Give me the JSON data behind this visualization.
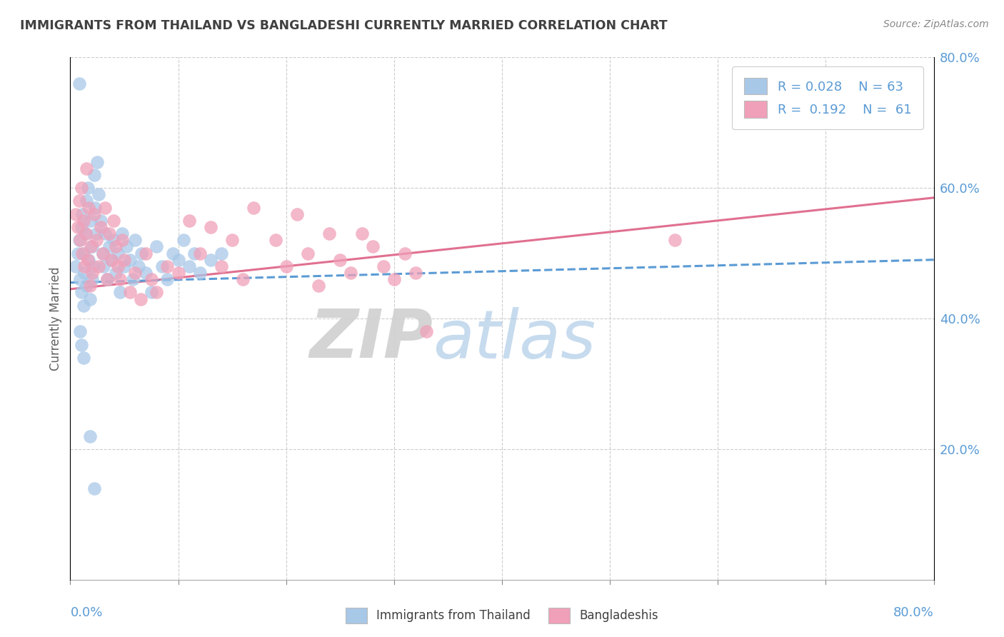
{
  "title": "IMMIGRANTS FROM THAILAND VS BANGLADESHI CURRENTLY MARRIED CORRELATION CHART",
  "source_text": "Source: ZipAtlas.com",
  "ylabel": "Currently Married",
  "watermark_zip": "ZIP",
  "watermark_atlas": "atlas",
  "blue_R": "0.028",
  "blue_N": "63",
  "pink_R": "0.192",
  "pink_N": "61",
  "blue_color": "#a8c8e8",
  "pink_color": "#f0a0b8",
  "blue_line_color": "#5b9bd5",
  "pink_line_color": "#e07090",
  "title_color": "#404040",
  "axis_label_color": "#5b9bd5",
  "xlim": [
    0.0,
    0.8
  ],
  "ylim": [
    0.0,
    0.8
  ],
  "blue_trend_start": 0.455,
  "blue_trend_end": 0.49,
  "pink_trend_start": 0.445,
  "pink_trend_end": 0.585,
  "blue_x": [
    0.005,
    0.007,
    0.008,
    0.009,
    0.01,
    0.01,
    0.011,
    0.012,
    0.012,
    0.013,
    0.014,
    0.015,
    0.015,
    0.016,
    0.017,
    0.018,
    0.019,
    0.02,
    0.02,
    0.021,
    0.022,
    0.023,
    0.024,
    0.025,
    0.026,
    0.028,
    0.03,
    0.031,
    0.032,
    0.034,
    0.036,
    0.038,
    0.04,
    0.042,
    0.044,
    0.046,
    0.048,
    0.05,
    0.052,
    0.055,
    0.058,
    0.06,
    0.063,
    0.066,
    0.07,
    0.075,
    0.08,
    0.085,
    0.09,
    0.095,
    0.1,
    0.105,
    0.11,
    0.115,
    0.12,
    0.13,
    0.14,
    0.008,
    0.009,
    0.01,
    0.012,
    0.018,
    0.022
  ],
  "blue_y": [
    0.48,
    0.5,
    0.52,
    0.46,
    0.54,
    0.44,
    0.56,
    0.42,
    0.5,
    0.47,
    0.53,
    0.58,
    0.45,
    0.6,
    0.49,
    0.43,
    0.55,
    0.46,
    0.51,
    0.48,
    0.62,
    0.57,
    0.53,
    0.64,
    0.59,
    0.55,
    0.5,
    0.48,
    0.53,
    0.46,
    0.51,
    0.49,
    0.52,
    0.47,
    0.5,
    0.44,
    0.53,
    0.48,
    0.51,
    0.49,
    0.46,
    0.52,
    0.48,
    0.5,
    0.47,
    0.44,
    0.51,
    0.48,
    0.46,
    0.5,
    0.49,
    0.52,
    0.48,
    0.5,
    0.47,
    0.49,
    0.5,
    0.76,
    0.38,
    0.36,
    0.34,
    0.22,
    0.14
  ],
  "pink_x": [
    0.005,
    0.007,
    0.008,
    0.009,
    0.01,
    0.011,
    0.012,
    0.013,
    0.014,
    0.015,
    0.016,
    0.017,
    0.018,
    0.019,
    0.02,
    0.022,
    0.024,
    0.026,
    0.028,
    0.03,
    0.032,
    0.034,
    0.036,
    0.038,
    0.04,
    0.042,
    0.044,
    0.046,
    0.048,
    0.05,
    0.055,
    0.06,
    0.065,
    0.07,
    0.075,
    0.08,
    0.09,
    0.1,
    0.11,
    0.12,
    0.13,
    0.14,
    0.15,
    0.16,
    0.17,
    0.19,
    0.2,
    0.21,
    0.22,
    0.23,
    0.24,
    0.25,
    0.26,
    0.27,
    0.28,
    0.29,
    0.3,
    0.31,
    0.32,
    0.33,
    0.56
  ],
  "pink_y": [
    0.56,
    0.54,
    0.58,
    0.52,
    0.6,
    0.5,
    0.55,
    0.48,
    0.53,
    0.63,
    0.49,
    0.57,
    0.45,
    0.51,
    0.47,
    0.56,
    0.52,
    0.48,
    0.54,
    0.5,
    0.57,
    0.46,
    0.53,
    0.49,
    0.55,
    0.51,
    0.48,
    0.46,
    0.52,
    0.49,
    0.44,
    0.47,
    0.43,
    0.5,
    0.46,
    0.44,
    0.48,
    0.47,
    0.55,
    0.5,
    0.54,
    0.48,
    0.52,
    0.46,
    0.57,
    0.52,
    0.48,
    0.56,
    0.5,
    0.45,
    0.53,
    0.49,
    0.47,
    0.53,
    0.51,
    0.48,
    0.46,
    0.5,
    0.47,
    0.38,
    0.52
  ]
}
